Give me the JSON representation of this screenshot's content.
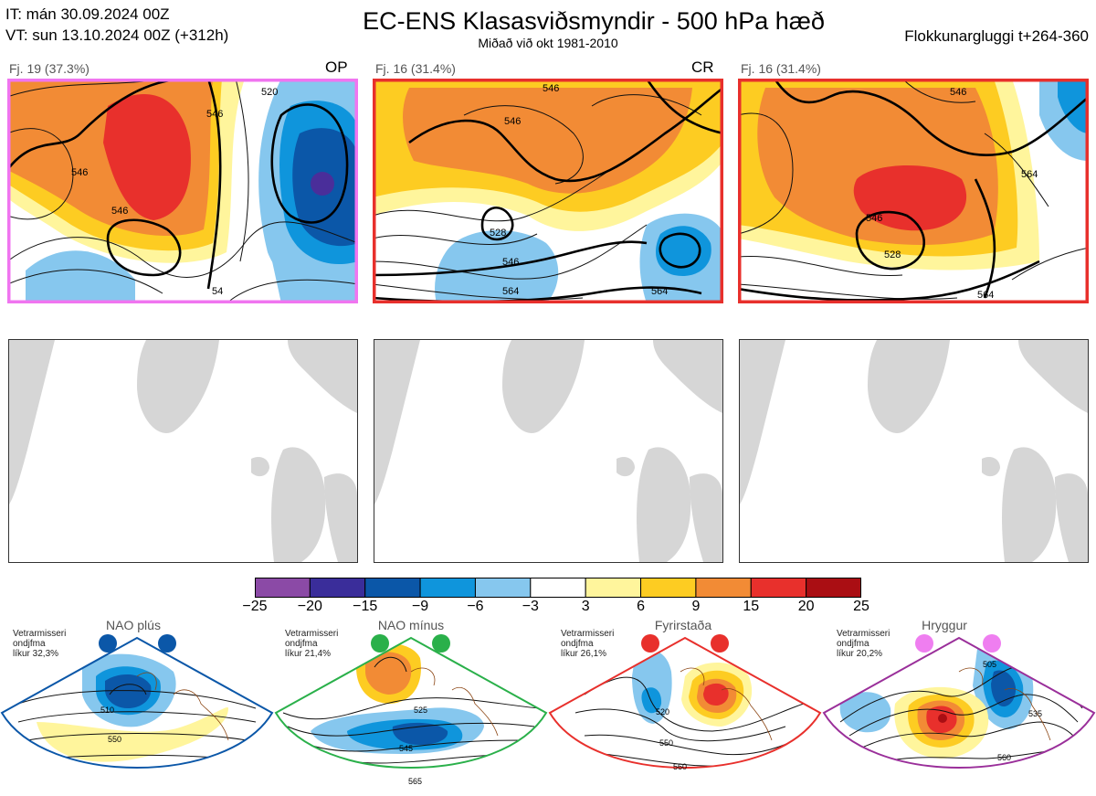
{
  "header": {
    "it_line": "IT: mán 30.09.2024 00Z",
    "vt_line": "VT: sun 13.10.2024 00Z  (+312h)",
    "title": "EC-ENS Klasasviðsmyndir - 500 hPa hæð",
    "subtitle": "Miðað við okt 1981-2010",
    "window": "Flokkunargluggi t+264-360"
  },
  "clusters": [
    {
      "label": "Fj. 19 (37.3%)",
      "tag": "OP",
      "border_color": "#f075f0",
      "contours": [
        "520",
        "546",
        "546",
        "546",
        "54"
      ]
    },
    {
      "label": "Fj. 16 (31.4%)",
      "tag": "CR",
      "border_color": "#e8302c",
      "contours": [
        "546",
        "546",
        "528",
        "546",
        "564",
        "564"
      ]
    },
    {
      "label": "Fj. 16 (31.4%)",
      "tag": "",
      "border_color": "#e8302c",
      "contours": [
        "546",
        "546",
        "528",
        "564",
        "564"
      ]
    }
  ],
  "colorbar": {
    "ticks": [
      "−25",
      "−20",
      "−15",
      "−9",
      "−6",
      "−3",
      "3",
      "6",
      "9",
      "15",
      "20",
      "25"
    ],
    "colors": [
      "#8b4aa6",
      "#3a2d9a",
      "#0b57a8",
      "#0f95dc",
      "#86c7ee",
      "#ffffff",
      "#fff59c",
      "#fdcc22",
      "#f28b35",
      "#e8302c",
      "#aa0e13"
    ]
  },
  "regimes": [
    {
      "name": "NAO plús",
      "text_lines": [
        "Vetrarmisseri",
        "ondjfma",
        "líkur 32,3%"
      ],
      "color": "#0b57a8",
      "contours": [
        "510",
        "550"
      ]
    },
    {
      "name": "NAO mínus",
      "text_lines": [
        "Vetrarmisseri",
        "ondjfma",
        "líkur 21,4%"
      ],
      "color": "#2ab04a",
      "contours": [
        "525",
        "545",
        "565"
      ]
    },
    {
      "name": "Fyrirstaða",
      "text_lines": [
        "Vetrarmisseri",
        "ondjfma",
        "líkur 26,1%"
      ],
      "color": "#e8302c",
      "contours": [
        "520",
        "550",
        "560"
      ]
    },
    {
      "name": "Hryggur",
      "text_lines": [
        "Vetrarmisseri",
        "ondjfma",
        "líkur 20,2%"
      ],
      "color": "#9a2f9a",
      "contours": [
        "505",
        "535",
        "560"
      ]
    }
  ]
}
